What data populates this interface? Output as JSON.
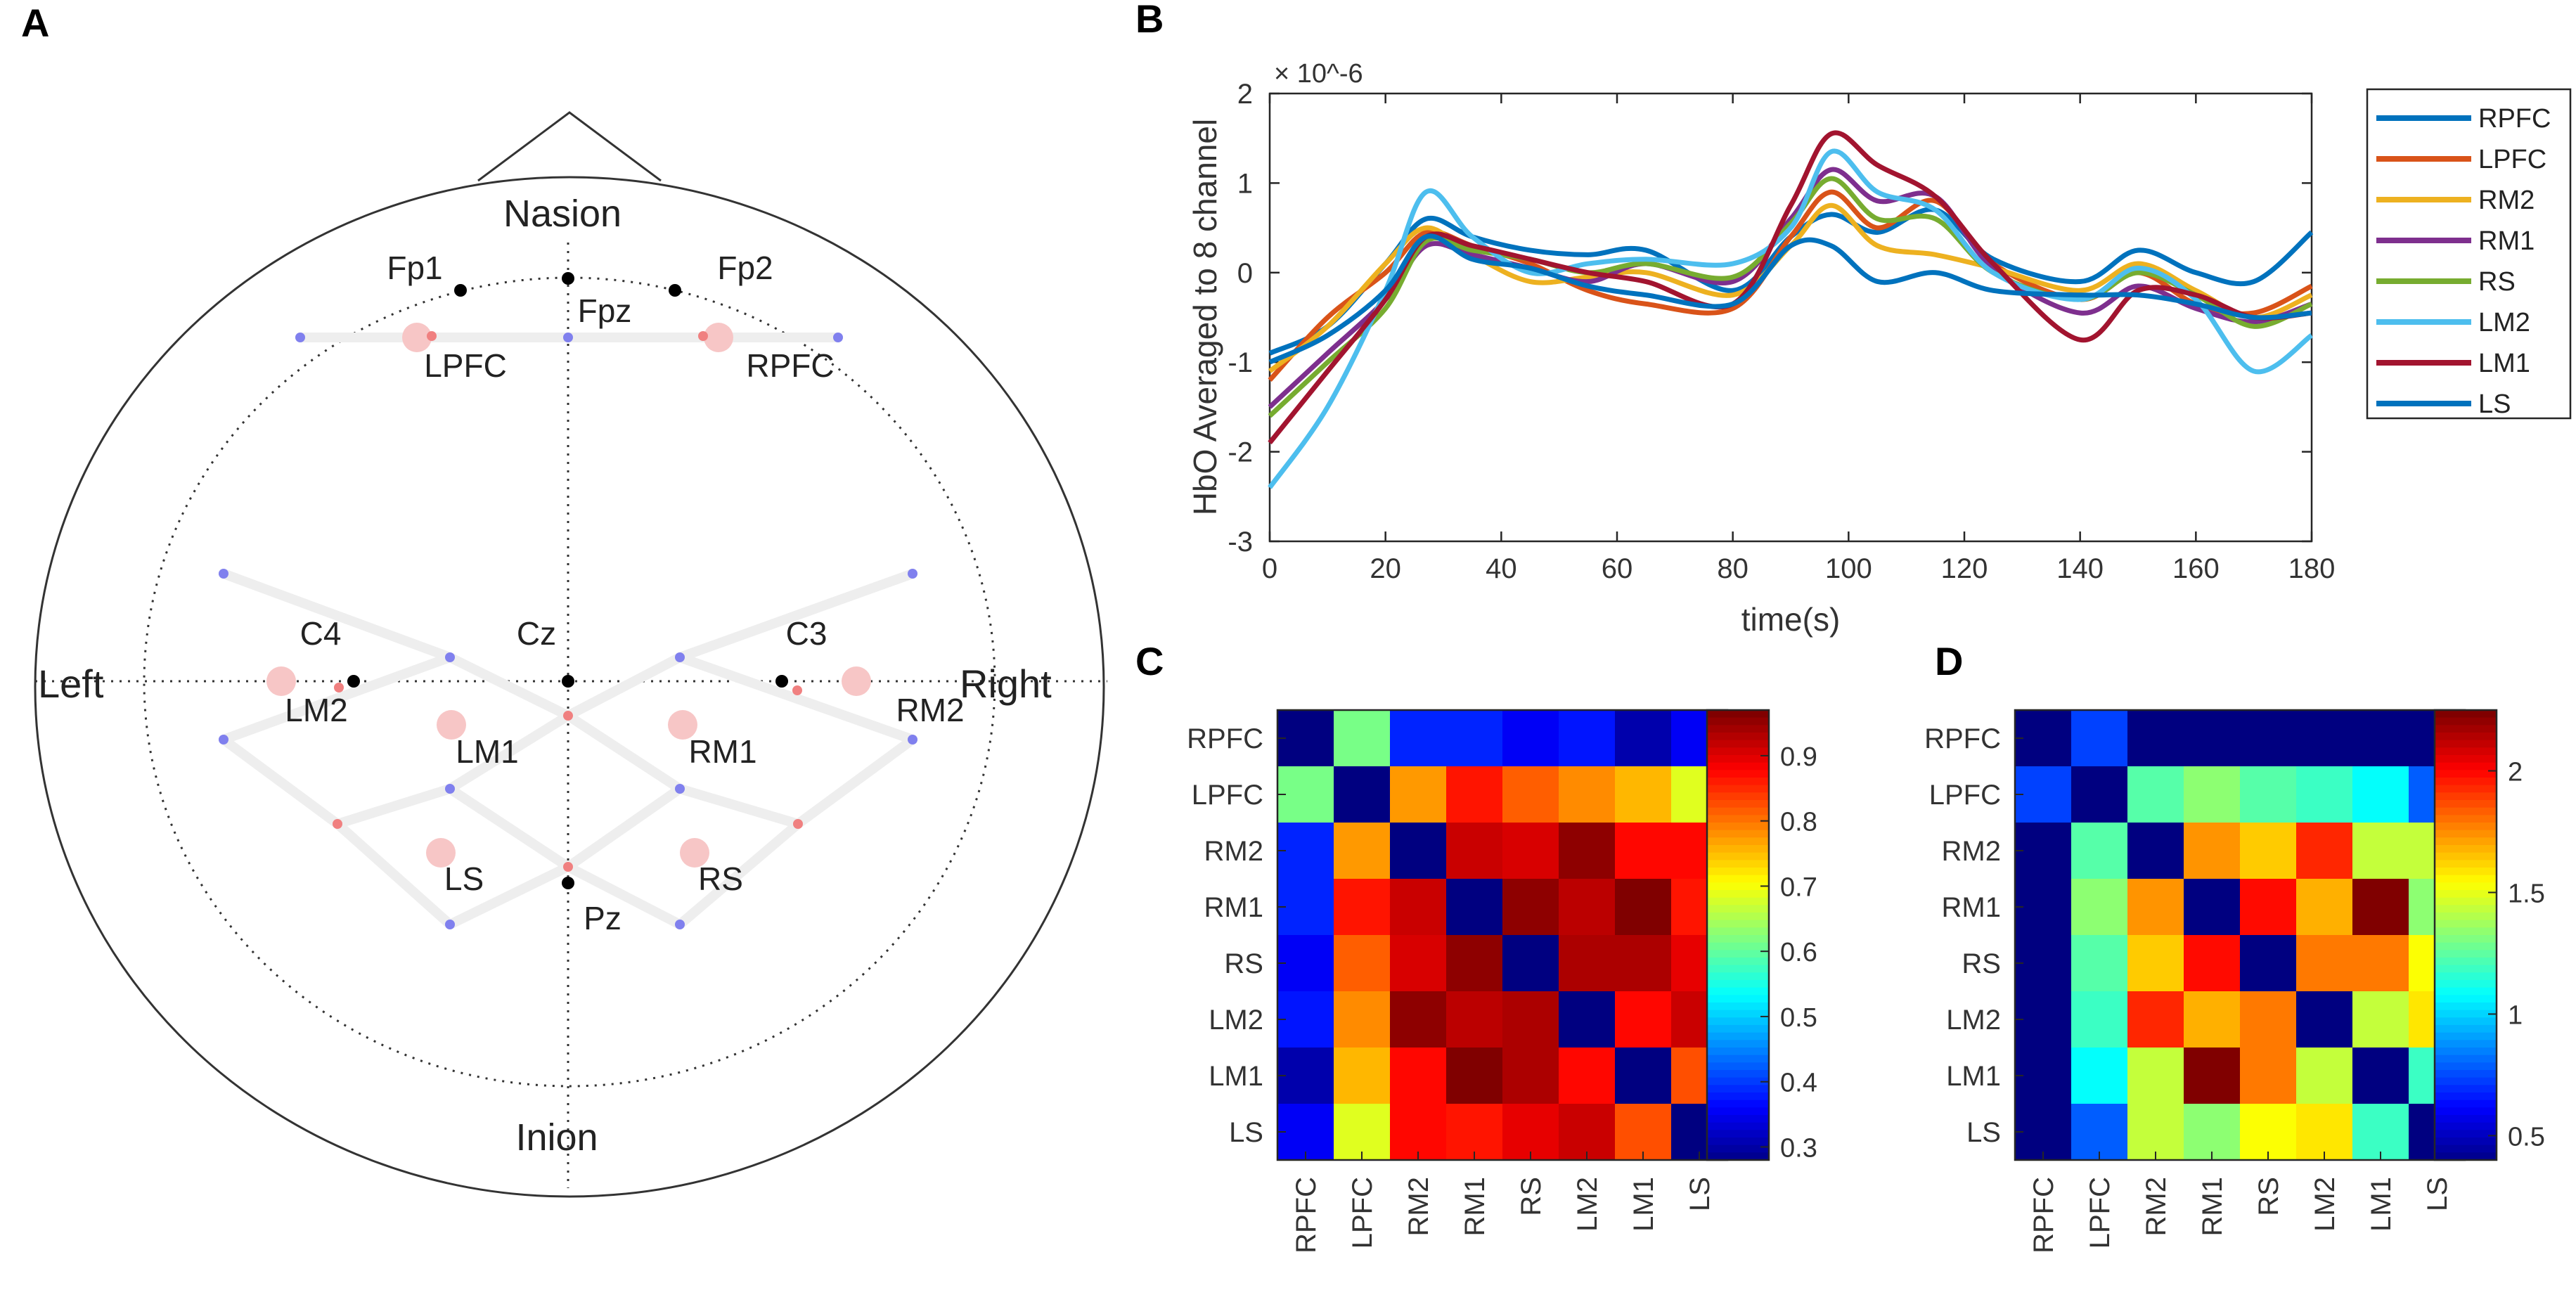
{
  "panel_labels": {
    "a": "A",
    "b": "B",
    "c": "C",
    "d": "D"
  },
  "head": {
    "nasion": "Nasion",
    "inion": "Inion",
    "left": "Left",
    "right": "Right",
    "electrodes": [
      {
        "label": "Fp1",
        "color": "#000000"
      },
      {
        "label": "Fpz",
        "color": "#000000"
      },
      {
        "label": "Fp2",
        "color": "#000000"
      },
      {
        "label": "C4",
        "color": "#000000"
      },
      {
        "label": "Cz",
        "color": "#000000"
      },
      {
        "label": "C3",
        "color": "#000000"
      },
      {
        "label": "Pz",
        "color": "#000000"
      }
    ],
    "regions": [
      "LPFC",
      "RPFC",
      "LM2",
      "LM1",
      "RM1",
      "RM2",
      "LS",
      "RS"
    ],
    "colors": {
      "source": "#f08080",
      "detector": "#8080ee",
      "channel": "#f7c6c6",
      "link": "#eeeeee"
    }
  },
  "chart_data": [
    {
      "type": "line",
      "title": "",
      "exponent_label": "× 10^-6",
      "xlabel": "time(s)",
      "ylabel": "HbO Averaged to 8 channel",
      "xlim": [
        0,
        180
      ],
      "ylim": [
        -3,
        2
      ],
      "xticks": [
        0,
        20,
        40,
        60,
        80,
        100,
        120,
        140,
        160,
        180
      ],
      "yticks": [
        2,
        1,
        0,
        -1,
        -2,
        -3
      ],
      "legend_position": "right",
      "x": [
        0,
        10,
        20,
        27,
        35,
        45,
        55,
        65,
        80,
        90,
        97,
        105,
        115,
        125,
        140,
        150,
        160,
        170,
        180
      ],
      "series": [
        {
          "name": "RPFC",
          "color": "#0072bd",
          "values": [
            -0.9,
            -0.6,
            0.1,
            0.6,
            0.4,
            0.25,
            0.2,
            0.25,
            -0.2,
            0.4,
            0.65,
            0.45,
            0.7,
            0.15,
            -0.1,
            0.25,
            0.0,
            -0.1,
            0.45
          ]
        },
        {
          "name": "LPFC",
          "color": "#d95319",
          "values": [
            -1.2,
            -0.5,
            0.0,
            0.45,
            0.3,
            0.1,
            -0.2,
            -0.35,
            -0.4,
            0.4,
            0.9,
            0.5,
            0.8,
            0.1,
            -0.3,
            0.0,
            -0.35,
            -0.45,
            -0.15
          ]
        },
        {
          "name": "RM2",
          "color": "#edb120",
          "values": [
            -1.1,
            -0.6,
            0.1,
            0.5,
            0.2,
            -0.1,
            -0.05,
            0.0,
            -0.25,
            0.3,
            0.75,
            0.3,
            0.2,
            0.05,
            -0.2,
            0.1,
            -0.2,
            -0.5,
            -0.25
          ]
        },
        {
          "name": "RM1",
          "color": "#7e2f8e",
          "values": [
            -1.5,
            -0.9,
            -0.3,
            0.3,
            0.2,
            0.05,
            -0.1,
            0.1,
            -0.1,
            0.6,
            1.15,
            0.8,
            0.85,
            0.05,
            -0.45,
            -0.15,
            -0.4,
            -0.55,
            -0.35
          ]
        },
        {
          "name": "RS",
          "color": "#77ac30",
          "values": [
            -1.6,
            -1.0,
            -0.4,
            0.35,
            0.25,
            0.15,
            0.0,
            0.1,
            -0.05,
            0.55,
            1.05,
            0.6,
            0.6,
            0.0,
            -0.3,
            0.0,
            -0.25,
            -0.6,
            -0.35
          ]
        },
        {
          "name": "LM2",
          "color": "#4dbeee",
          "values": [
            -2.4,
            -1.5,
            -0.2,
            0.9,
            0.4,
            0.0,
            0.1,
            0.15,
            0.1,
            0.5,
            1.35,
            0.9,
            0.7,
            0.0,
            -0.3,
            0.05,
            -0.3,
            -1.1,
            -0.7
          ]
        },
        {
          "name": "LM1",
          "color": "#a2142f",
          "values": [
            -1.9,
            -1.1,
            -0.3,
            0.4,
            0.3,
            0.15,
            0.0,
            -0.1,
            -0.35,
            0.75,
            1.55,
            1.2,
            0.85,
            0.1,
            -0.75,
            -0.2,
            -0.25,
            -0.5,
            -0.45
          ]
        },
        {
          "name": "LS",
          "color": "#0072bd",
          "values": [
            -1.0,
            -0.7,
            -0.2,
            0.4,
            0.15,
            0.05,
            -0.15,
            -0.25,
            -0.35,
            0.3,
            0.3,
            -0.1,
            0.0,
            -0.2,
            -0.25,
            -0.25,
            -0.35,
            -0.5,
            -0.45
          ]
        }
      ]
    },
    {
      "type": "heatmap",
      "labels": [
        "RPFC",
        "LPFC",
        "RM2",
        "RM1",
        "RS",
        "LM2",
        "LM1",
        "LS"
      ],
      "colorbar_ticks": [
        0.9,
        0.8,
        0.7,
        0.6,
        0.5,
        0.4,
        0.3
      ],
      "range": [
        0.28,
        0.97
      ],
      "values": [
        [
          0.28,
          0.62,
          0.39,
          0.39,
          0.36,
          0.38,
          0.31,
          0.36
        ],
        [
          0.62,
          0.28,
          0.78,
          0.87,
          0.82,
          0.79,
          0.76,
          0.69
        ],
        [
          0.39,
          0.78,
          0.28,
          0.92,
          0.91,
          0.96,
          0.88,
          0.88
        ],
        [
          0.39,
          0.87,
          0.92,
          0.28,
          0.96,
          0.93,
          0.97,
          0.87
        ],
        [
          0.36,
          0.82,
          0.91,
          0.96,
          0.28,
          0.94,
          0.94,
          0.9
        ],
        [
          0.38,
          0.79,
          0.96,
          0.93,
          0.94,
          0.28,
          0.88,
          0.92
        ],
        [
          0.31,
          0.76,
          0.88,
          0.97,
          0.94,
          0.88,
          0.28,
          0.83
        ],
        [
          0.36,
          0.69,
          0.88,
          0.87,
          0.9,
          0.92,
          0.83,
          0.28
        ]
      ]
    },
    {
      "type": "heatmap",
      "labels": [
        "RPFC",
        "LPFC",
        "RM2",
        "RM1",
        "RS",
        "LM2",
        "LM1",
        "LS"
      ],
      "colorbar_ticks": [
        2,
        1.5,
        1,
        0.5
      ],
      "range": [
        0.4,
        2.25
      ],
      "values": [
        [
          0.4,
          0.75,
          0.4,
          0.4,
          0.4,
          0.4,
          0.4,
          0.4
        ],
        [
          0.75,
          0.4,
          1.25,
          1.35,
          1.25,
          1.2,
          1.1,
          0.8
        ],
        [
          0.4,
          1.25,
          0.4,
          1.75,
          1.65,
          1.95,
          1.45,
          1.45
        ],
        [
          0.4,
          1.35,
          1.75,
          0.4,
          2.0,
          1.7,
          2.25,
          1.35
        ],
        [
          0.4,
          1.25,
          1.65,
          2.0,
          0.4,
          1.8,
          1.8,
          1.55
        ],
        [
          0.4,
          1.2,
          1.95,
          1.7,
          1.8,
          0.4,
          1.45,
          1.6
        ],
        [
          0.4,
          1.1,
          1.45,
          2.25,
          1.8,
          1.45,
          0.4,
          1.2
        ],
        [
          0.4,
          0.8,
          1.45,
          1.35,
          1.55,
          1.6,
          1.2,
          0.4
        ]
      ]
    }
  ]
}
